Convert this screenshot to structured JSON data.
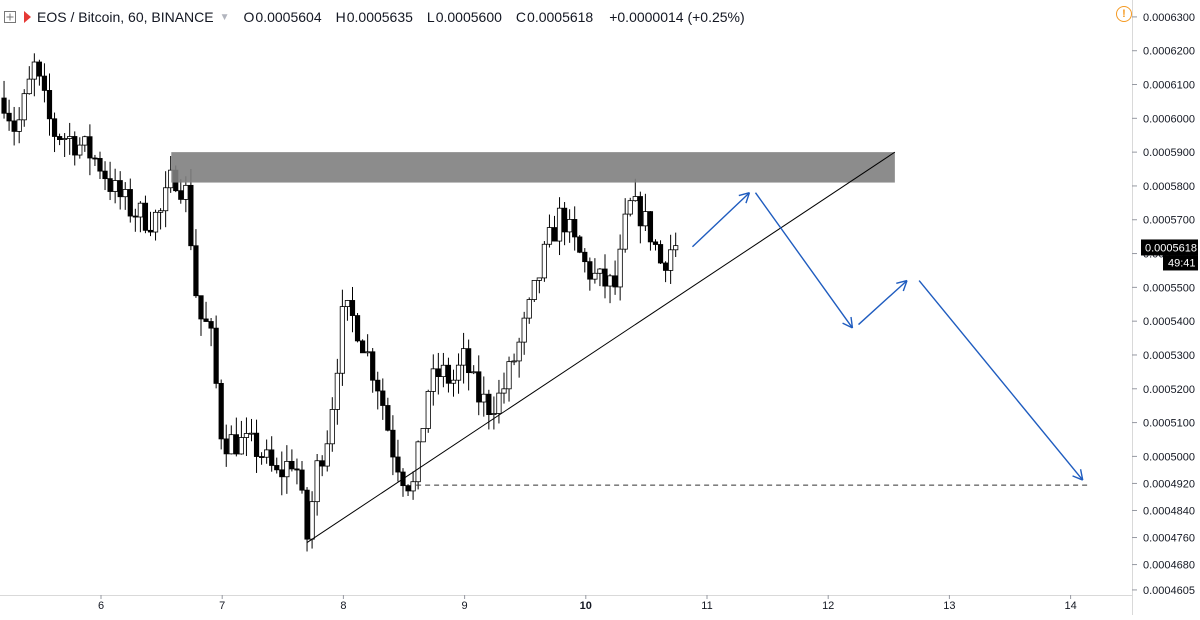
{
  "legend": {
    "expand_icon": "expand-square-icon",
    "symbol": "EOS / Bitcoin, 60, BINANCE",
    "open_label": "O",
    "open": "0.0005604",
    "high_label": "H",
    "high": "0.0005635",
    "low_label": "L",
    "low": "0.0005600",
    "close_label": "C",
    "close": "0.0005618",
    "change": "+0.0000014 (+0.25%)",
    "warning_icon": "warning-circle-icon",
    "warning_glyph": "!"
  },
  "price_tag": {
    "price": "0.0005618",
    "countdown": "49:41"
  },
  "colors": {
    "up": "#ffffff",
    "down": "#000000",
    "zone": "#808080",
    "arrow": "#1f5cbf",
    "warning": "#f59a23"
  },
  "chart_data": {
    "type": "candlestick",
    "title": "EOS / Bitcoin, 60, BINANCE",
    "ylim": [
      0.000459,
      0.000635
    ],
    "xlim": [
      5.2,
      14.5
    ],
    "y_ticks": [
      "0.0006300",
      "0.0006200",
      "0.0006100",
      "0.0006000",
      "0.0005900",
      "0.0005800",
      "0.0005700",
      "0.0005600",
      "0.0005500",
      "0.0005400",
      "0.0005300",
      "0.0005200",
      "0.0005100",
      "0.0005000",
      "0.0004920",
      "0.0004840",
      "0.0004760",
      "0.0004680",
      "0.0004605"
    ],
    "x_ticks": [
      {
        "day": 6,
        "label": "6"
      },
      {
        "day": 7,
        "label": "7"
      },
      {
        "day": 8,
        "label": "8"
      },
      {
        "day": 9,
        "label": "9"
      },
      {
        "day": 10,
        "label": "10"
      },
      {
        "day": 11,
        "label": "11"
      },
      {
        "day": 12,
        "label": "12"
      },
      {
        "day": 13,
        "label": "13"
      },
      {
        "day": 14,
        "label": "14"
      }
    ],
    "anchors": [
      [
        5.2,
        0.000606
      ],
      [
        5.3,
        0.000596
      ],
      [
        5.45,
        0.000615
      ],
      [
        5.6,
        0.000596
      ],
      [
        5.75,
        0.000594
      ],
      [
        5.9,
        0.00059
      ],
      [
        6.0,
        0.000586
      ],
      [
        6.1,
        0.000579
      ],
      [
        6.25,
        0.000573
      ],
      [
        6.4,
        0.00057
      ],
      [
        6.5,
        0.000572
      ],
      [
        6.6,
        0.000584
      ],
      [
        6.7,
        0.000578
      ],
      [
        6.75,
        0.000562
      ],
      [
        6.8,
        0.000542
      ],
      [
        6.9,
        0.000537
      ],
      [
        7.0,
        0.000505
      ],
      [
        7.15,
        0.000504
      ],
      [
        7.3,
        0.000502
      ],
      [
        7.45,
        0.000494
      ],
      [
        7.6,
        0.0005
      ],
      [
        7.7,
        0.000476
      ],
      [
        7.78,
        0.000496
      ],
      [
        7.88,
        0.000508
      ],
      [
        8.0,
        0.000543
      ],
      [
        8.1,
        0.00054
      ],
      [
        8.2,
        0.00053
      ],
      [
        8.3,
        0.00052
      ],
      [
        8.4,
        0.000503
      ],
      [
        8.5,
        0.000494
      ],
      [
        8.58,
        0.000491
      ],
      [
        8.7,
        0.00052
      ],
      [
        8.8,
        0.000525
      ],
      [
        8.9,
        0.000522
      ],
      [
        9.0,
        0.000529
      ],
      [
        9.1,
        0.000518
      ],
      [
        9.2,
        0.000515
      ],
      [
        9.3,
        0.000518
      ],
      [
        9.45,
        0.000533
      ],
      [
        9.55,
        0.000545
      ],
      [
        9.68,
        0.000562
      ],
      [
        9.8,
        0.000572
      ],
      [
        9.9,
        0.000563
      ],
      [
        10.0,
        0.000556
      ],
      [
        10.1,
        0.000552
      ],
      [
        10.25,
        0.00055
      ],
      [
        10.35,
        0.000574
      ],
      [
        10.45,
        0.000572
      ],
      [
        10.55,
        0.000565
      ],
      [
        10.62,
        0.000557
      ],
      [
        10.72,
        0.0005625
      ],
      [
        10.78,
        0.0005618
      ]
    ],
    "resistance_zone": {
      "y_top": 0.00059,
      "y_bottom": 0.000581,
      "x_start": 6.58,
      "x_end": 12.55
    },
    "trendline": {
      "x1": 7.7,
      "y1": 0.0004745,
      "x2": 12.55,
      "y2": 0.00059
    },
    "support_dashed": {
      "y": 0.0004915,
      "x_start": 8.6,
      "x_end": 14.15
    },
    "projection_arrows": [
      {
        "from": [
          10.88,
          0.000562
        ],
        "to": [
          11.35,
          0.000578
        ]
      },
      {
        "from": [
          11.4,
          0.000578
        ],
        "to": [
          12.2,
          0.000538
        ]
      },
      {
        "from": [
          12.25,
          0.000539
        ],
        "to": [
          12.65,
          0.000552
        ]
      },
      {
        "from": [
          12.75,
          0.000552
        ],
        "to": [
          14.1,
          0.000493
        ]
      }
    ]
  }
}
